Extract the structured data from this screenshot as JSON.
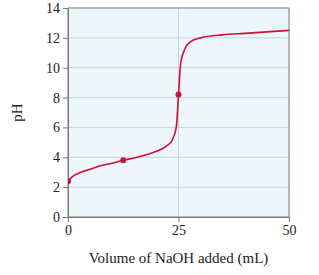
{
  "chart_data": {
    "type": "line",
    "x_label": "Volume of NaOH added (mL)",
    "y_label": "pH",
    "xlim": [
      0,
      50
    ],
    "xticks": [
      0,
      25,
      50
    ],
    "ylim": [
      0,
      14
    ],
    "yticks": [
      0,
      2,
      4,
      6,
      8,
      10,
      12,
      14
    ],
    "grid": true,
    "series": [
      {
        "type": "line",
        "color": "#d0103a",
        "x": [
          0,
          1,
          2.5,
          5,
          7.5,
          10,
          12.5,
          15,
          17.5,
          20,
          22.5,
          23.5,
          24.5,
          25,
          25.5,
          26.5,
          27.5,
          30,
          35,
          40,
          45,
          50
        ],
        "values": [
          2.4,
          2.7,
          2.95,
          3.2,
          3.45,
          3.6,
          3.8,
          3.95,
          4.15,
          4.4,
          4.8,
          5.1,
          6.0,
          8.2,
          10.3,
          11.3,
          11.7,
          12.0,
          12.2,
          12.3,
          12.4,
          12.5
        ]
      },
      {
        "type": "scatter",
        "color": "#d0103a",
        "marker": "circle",
        "x": [
          0,
          12.5,
          25
        ],
        "values": [
          2.4,
          3.8,
          8.2
        ]
      }
    ]
  }
}
